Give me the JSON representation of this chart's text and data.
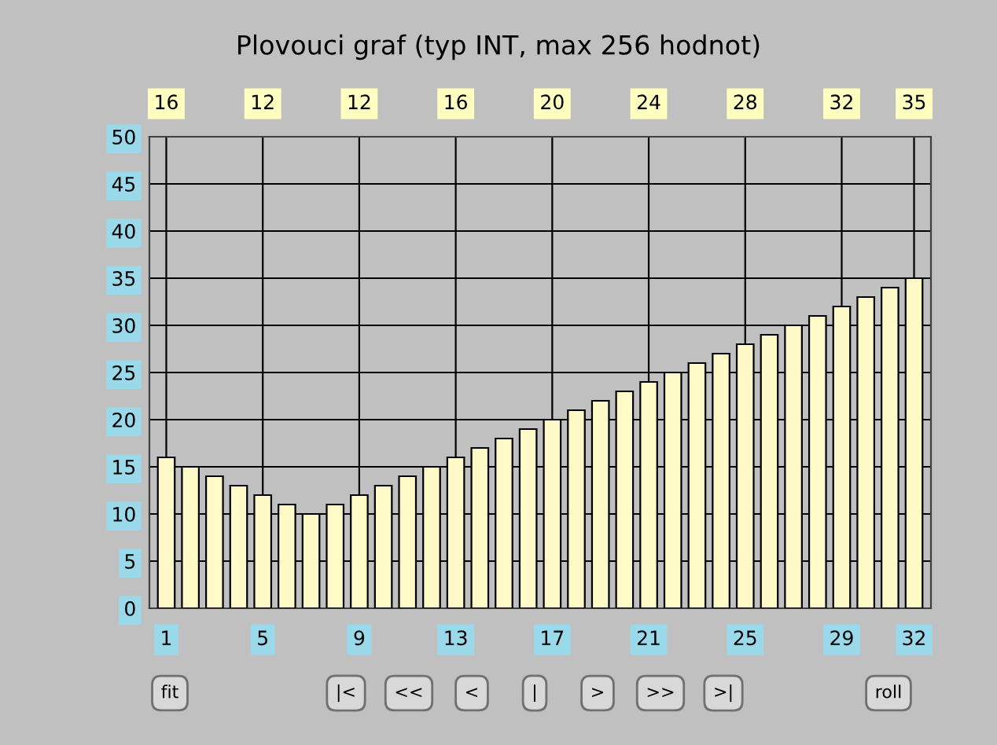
{
  "chart_data": {
    "type": "bar",
    "title": "Plovouci graf (typ INT, max 256 hodnot)",
    "categories": [
      "1",
      null,
      null,
      null,
      "5",
      null,
      null,
      null,
      "9",
      null,
      null,
      null,
      "13",
      null,
      null,
      null,
      "17",
      null,
      null,
      null,
      "21",
      null,
      null,
      null,
      "25",
      null,
      null,
      null,
      "29",
      null,
      null,
      "32"
    ],
    "values": [
      16,
      15,
      14,
      13,
      12,
      11,
      10,
      11,
      12,
      13,
      14,
      15,
      16,
      17,
      18,
      19,
      20,
      21,
      22,
      23,
      24,
      25,
      26,
      27,
      28,
      29,
      30,
      31,
      32,
      33,
      34,
      35
    ],
    "value_labels": [
      "16",
      null,
      null,
      null,
      "12",
      null,
      null,
      null,
      "12",
      null,
      null,
      null,
      "16",
      null,
      null,
      null,
      "20",
      null,
      null,
      null,
      "24",
      null,
      null,
      null,
      "28",
      null,
      null,
      null,
      "32",
      null,
      null,
      "35"
    ],
    "color": "#fffac8",
    "ylim": [
      0,
      50
    ],
    "yticks": [
      0,
      5,
      10,
      15,
      20,
      25,
      30,
      35,
      40,
      45,
      50
    ],
    "grid": true,
    "legend": false,
    "annotations": [
      "fit",
      "|<",
      "<<",
      "<",
      "|",
      ">",
      ">>",
      ">|",
      "roll"
    ]
  }
}
